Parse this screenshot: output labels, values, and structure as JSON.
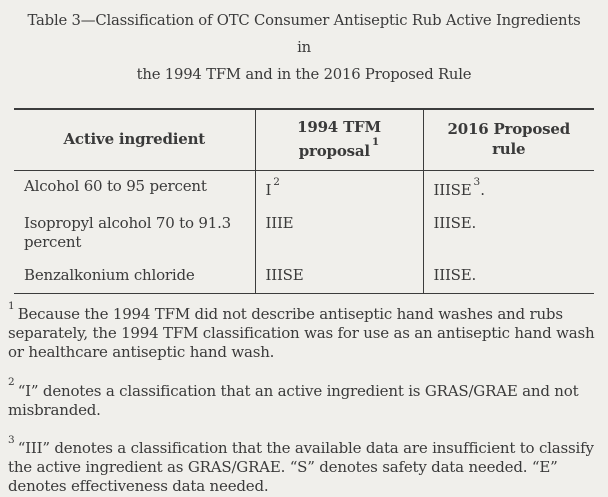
{
  "title": {
    "line1": "Table 3—Classification of OTC Consumer Antiseptic Rub Active Ingredients in",
    "line2": "the 1994 TFM and in the 2016 Proposed Rule"
  },
  "table": {
    "columns": [
      {
        "line1": "Active ingredient",
        "line2": "",
        "sup": ""
      },
      {
        "line1": "1994 TFM",
        "line2": "proposal",
        "sup": "1"
      },
      {
        "line1": "2016 Proposed",
        "line2": "rule",
        "sup": ""
      }
    ],
    "rows": [
      {
        "ingredient": "Alcohol 60 to 95 percent",
        "tfm": "I",
        "tfm_sup": "2",
        "tfm_suffix": "",
        "rule": "IIISE",
        "rule_sup": "3",
        "rule_suffix": "."
      },
      {
        "ingredient": "Isopropyl alcohol 70 to 91.3 percent",
        "tfm": "IIIE",
        "tfm_sup": "",
        "tfm_suffix": "",
        "rule": "IIISE",
        "rule_sup": "",
        "rule_suffix": "."
      },
      {
        "ingredient": "Benzalkonium chloride",
        "tfm": "IIISE",
        "tfm_sup": "",
        "tfm_suffix": "",
        "rule": "IIISE",
        "rule_sup": "",
        "rule_suffix": "."
      }
    ]
  },
  "footnotes": [
    {
      "sup": "1",
      "text": "Because the 1994 TFM did not describe antiseptic hand washes and rubs separately, the 1994 TFM classification was for use as an antiseptic hand wash or healthcare antiseptic hand wash."
    },
    {
      "sup": "2",
      "text": "“I” denotes a classification that an active ingredient is GRAS/GRAE and not misbranded."
    },
    {
      "sup": "3",
      "text": "“III” denotes a classification that the available data are insufficient to classify the active ingredient as GRAS/GRAE. “S” denotes safety data needed. “E” denotes effectiveness data needed."
    }
  ],
  "colors": {
    "background": "#f0efeb",
    "text": "#3a3a3a",
    "border": "#3c3c3c"
  }
}
